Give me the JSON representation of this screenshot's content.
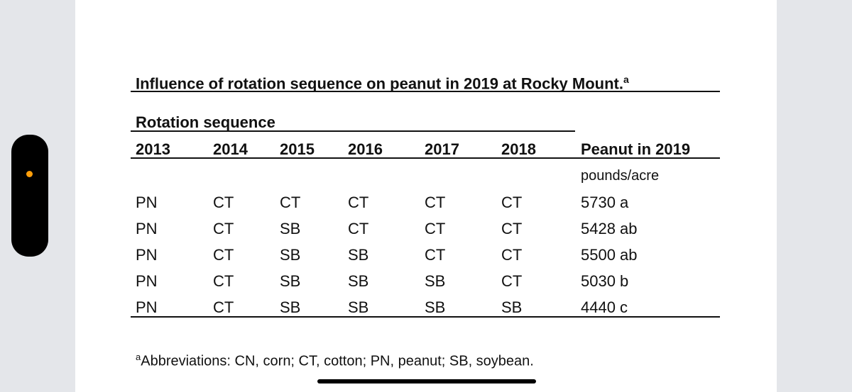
{
  "table": {
    "title": "Influence of rotation sequence on peanut in 2019 at Rocky Mount.",
    "title_marker": "a",
    "group_header": "Rotation sequence",
    "columns": [
      "2013",
      "2014",
      "2015",
      "2016",
      "2017",
      "2018",
      "Peanut in 2019"
    ],
    "units": "pounds/acre",
    "rows": [
      [
        "PN",
        "CT",
        "CT",
        "CT",
        "CT",
        "CT",
        "5730 a"
      ],
      [
        "PN",
        "CT",
        "SB",
        "CT",
        "CT",
        "CT",
        "5428 ab"
      ],
      [
        "PN",
        "CT",
        "SB",
        "SB",
        "CT",
        "CT",
        "5500 ab"
      ],
      [
        "PN",
        "CT",
        "SB",
        "SB",
        "SB",
        "CT",
        "5030 b"
      ],
      [
        "PN",
        "CT",
        "SB",
        "SB",
        "SB",
        "SB",
        "4440 c"
      ]
    ],
    "footnote_marker": "a",
    "footnote": "Abbreviations: CN, corn; CT, cotton; PN, peanut; SB, soybean."
  },
  "colors": {
    "accent_dot": "#ff9f0a",
    "page": "#ffffff",
    "background": "#eceef1"
  }
}
